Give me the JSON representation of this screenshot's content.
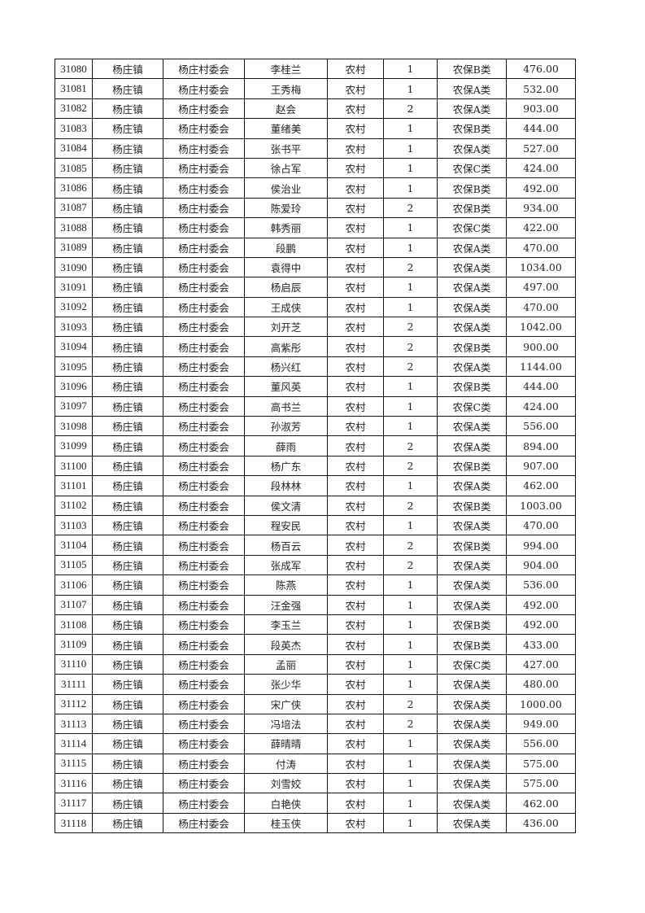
{
  "table": {
    "rows": [
      [
        "31080",
        "杨庄镇",
        "杨庄村委会",
        "李桂兰",
        "农村",
        "1",
        "农保B类",
        "476.00"
      ],
      [
        "31081",
        "杨庄镇",
        "杨庄村委会",
        "王秀梅",
        "农村",
        "1",
        "农保A类",
        "532.00"
      ],
      [
        "31082",
        "杨庄镇",
        "杨庄村委会",
        "赵会",
        "农村",
        "2",
        "农保A类",
        "903.00"
      ],
      [
        "31083",
        "杨庄镇",
        "杨庄村委会",
        "董绪美",
        "农村",
        "1",
        "农保B类",
        "444.00"
      ],
      [
        "31084",
        "杨庄镇",
        "杨庄村委会",
        "张书平",
        "农村",
        "1",
        "农保A类",
        "527.00"
      ],
      [
        "31085",
        "杨庄镇",
        "杨庄村委会",
        "徐占军",
        "农村",
        "1",
        "农保C类",
        "424.00"
      ],
      [
        "31086",
        "杨庄镇",
        "杨庄村委会",
        "侯治业",
        "农村",
        "1",
        "农保B类",
        "492.00"
      ],
      [
        "31087",
        "杨庄镇",
        "杨庄村委会",
        "陈爱玲",
        "农村",
        "2",
        "农保B类",
        "934.00"
      ],
      [
        "31088",
        "杨庄镇",
        "杨庄村委会",
        "韩秀丽",
        "农村",
        "1",
        "农保C类",
        "422.00"
      ],
      [
        "31089",
        "杨庄镇",
        "杨庄村委会",
        "段鹏",
        "农村",
        "1",
        "农保A类",
        "470.00"
      ],
      [
        "31090",
        "杨庄镇",
        "杨庄村委会",
        "袁得中",
        "农村",
        "2",
        "农保A类",
        "1034.00"
      ],
      [
        "31091",
        "杨庄镇",
        "杨庄村委会",
        "杨启辰",
        "农村",
        "1",
        "农保A类",
        "497.00"
      ],
      [
        "31092",
        "杨庄镇",
        "杨庄村委会",
        "王成侠",
        "农村",
        "1",
        "农保A类",
        "470.00"
      ],
      [
        "31093",
        "杨庄镇",
        "杨庄村委会",
        "刘开芝",
        "农村",
        "2",
        "农保A类",
        "1042.00"
      ],
      [
        "31094",
        "杨庄镇",
        "杨庄村委会",
        "高紫彤",
        "农村",
        "2",
        "农保B类",
        "900.00"
      ],
      [
        "31095",
        "杨庄镇",
        "杨庄村委会",
        "杨兴红",
        "农村",
        "2",
        "农保A类",
        "1144.00"
      ],
      [
        "31096",
        "杨庄镇",
        "杨庄村委会",
        "董风英",
        "农村",
        "1",
        "农保B类",
        "444.00"
      ],
      [
        "31097",
        "杨庄镇",
        "杨庄村委会",
        "高书兰",
        "农村",
        "1",
        "农保C类",
        "424.00"
      ],
      [
        "31098",
        "杨庄镇",
        "杨庄村委会",
        "孙淑芳",
        "农村",
        "1",
        "农保A类",
        "556.00"
      ],
      [
        "31099",
        "杨庄镇",
        "杨庄村委会",
        "薛雨",
        "农村",
        "2",
        "农保A类",
        "894.00"
      ],
      [
        "31100",
        "杨庄镇",
        "杨庄村委会",
        "杨广东",
        "农村",
        "2",
        "农保B类",
        "907.00"
      ],
      [
        "31101",
        "杨庄镇",
        "杨庄村委会",
        "段林林",
        "农村",
        "1",
        "农保A类",
        "462.00"
      ],
      [
        "31102",
        "杨庄镇",
        "杨庄村委会",
        "侯文清",
        "农村",
        "2",
        "农保B类",
        "1003.00"
      ],
      [
        "31103",
        "杨庄镇",
        "杨庄村委会",
        "程安民",
        "农村",
        "1",
        "农保A类",
        "470.00"
      ],
      [
        "31104",
        "杨庄镇",
        "杨庄村委会",
        "杨百云",
        "农村",
        "2",
        "农保B类",
        "994.00"
      ],
      [
        "31105",
        "杨庄镇",
        "杨庄村委会",
        "张成军",
        "农村",
        "2",
        "农保A类",
        "904.00"
      ],
      [
        "31106",
        "杨庄镇",
        "杨庄村委会",
        "陈燕",
        "农村",
        "1",
        "农保A类",
        "536.00"
      ],
      [
        "31107",
        "杨庄镇",
        "杨庄村委会",
        "汪金强",
        "农村",
        "1",
        "农保A类",
        "492.00"
      ],
      [
        "31108",
        "杨庄镇",
        "杨庄村委会",
        "李玉兰",
        "农村",
        "1",
        "农保B类",
        "492.00"
      ],
      [
        "31109",
        "杨庄镇",
        "杨庄村委会",
        "段英杰",
        "农村",
        "1",
        "农保B类",
        "433.00"
      ],
      [
        "31110",
        "杨庄镇",
        "杨庄村委会",
        "孟丽",
        "农村",
        "1",
        "农保C类",
        "427.00"
      ],
      [
        "31111",
        "杨庄镇",
        "杨庄村委会",
        "张少华",
        "农村",
        "1",
        "农保A类",
        "480.00"
      ],
      [
        "31112",
        "杨庄镇",
        "杨庄村委会",
        "宋广侠",
        "农村",
        "2",
        "农保A类",
        "1000.00"
      ],
      [
        "31113",
        "杨庄镇",
        "杨庄村委会",
        "冯培法",
        "农村",
        "2",
        "农保A类",
        "949.00"
      ],
      [
        "31114",
        "杨庄镇",
        "杨庄村委会",
        "薛晴晴",
        "农村",
        "1",
        "农保A类",
        "556.00"
      ],
      [
        "31115",
        "杨庄镇",
        "杨庄村委会",
        "付涛",
        "农村",
        "1",
        "农保A类",
        "575.00"
      ],
      [
        "31116",
        "杨庄镇",
        "杨庄村委会",
        "刘雪姣",
        "农村",
        "1",
        "农保A类",
        "575.00"
      ],
      [
        "31117",
        "杨庄镇",
        "杨庄村委会",
        "白艳侠",
        "农村",
        "1",
        "农保A类",
        "462.00"
      ],
      [
        "31118",
        "杨庄镇",
        "杨庄村委会",
        "桂玉侠",
        "农村",
        "1",
        "农保A类",
        "436.00"
      ]
    ]
  }
}
